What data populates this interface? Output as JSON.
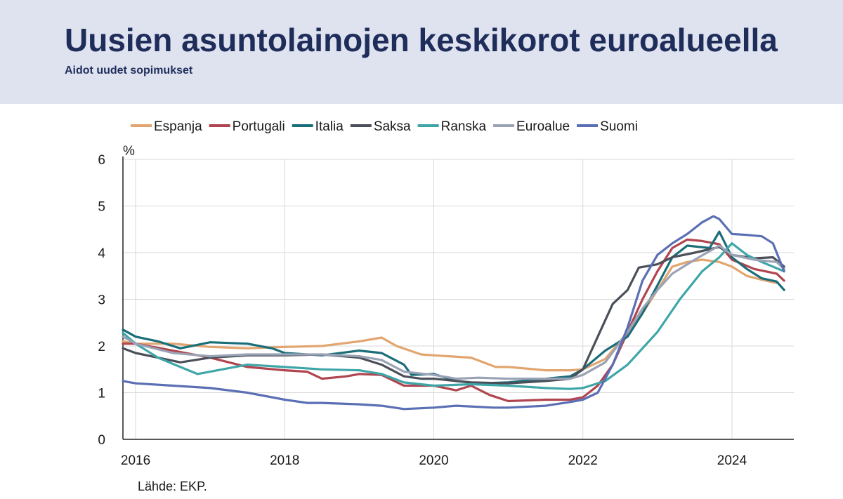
{
  "header": {
    "title": "Uusien asuntolainojen keskikorot euroalueella",
    "subtitle": "Aidot uudet sopimukset"
  },
  "source": "Lähde: EKP.",
  "chart_data": {
    "type": "line",
    "ylabel": "%",
    "ylim": [
      0,
      6
    ],
    "yticks": [
      "0",
      "1",
      "2",
      "3",
      "4",
      "5",
      "6"
    ],
    "xlim": [
      2015.83,
      2024.83
    ],
    "xticks": [
      {
        "value": 2016,
        "label": "2016"
      },
      {
        "value": 2018,
        "label": "2018"
      },
      {
        "value": 2020,
        "label": "2020"
      },
      {
        "value": 2022,
        "label": "2022"
      },
      {
        "value": 2024,
        "label": "2024"
      }
    ],
    "grid": true,
    "legend_position": "top",
    "series": [
      {
        "name": "Espanja",
        "color": "#e2a56f",
        "points": [
          [
            2015.83,
            2.1
          ],
          [
            2016.0,
            2.05
          ],
          [
            2016.5,
            2.05
          ],
          [
            2017.0,
            1.98
          ],
          [
            2017.5,
            1.95
          ],
          [
            2018.0,
            1.98
          ],
          [
            2018.5,
            2.0
          ],
          [
            2019.0,
            2.1
          ],
          [
            2019.3,
            2.18
          ],
          [
            2019.5,
            2.0
          ],
          [
            2019.83,
            1.82
          ],
          [
            2020.0,
            1.8
          ],
          [
            2020.5,
            1.75
          ],
          [
            2020.83,
            1.55
          ],
          [
            2021.0,
            1.55
          ],
          [
            2021.5,
            1.48
          ],
          [
            2021.83,
            1.48
          ],
          [
            2022.0,
            1.5
          ],
          [
            2022.3,
            1.72
          ],
          [
            2022.5,
            2.1
          ],
          [
            2022.8,
            2.7
          ],
          [
            2023.0,
            3.2
          ],
          [
            2023.2,
            3.7
          ],
          [
            2023.4,
            3.8
          ],
          [
            2023.6,
            3.85
          ],
          [
            2023.83,
            3.8
          ],
          [
            2024.0,
            3.7
          ],
          [
            2024.2,
            3.5
          ],
          [
            2024.4,
            3.42
          ],
          [
            2024.6,
            3.35
          ]
        ]
      },
      {
        "name": "Portugali",
        "color": "#b0454f",
        "points": [
          [
            2015.83,
            2.05
          ],
          [
            2016.0,
            2.05
          ],
          [
            2016.5,
            1.9
          ],
          [
            2017.0,
            1.75
          ],
          [
            2017.5,
            1.55
          ],
          [
            2018.0,
            1.48
          ],
          [
            2018.3,
            1.45
          ],
          [
            2018.5,
            1.3
          ],
          [
            2018.83,
            1.35
          ],
          [
            2019.0,
            1.4
          ],
          [
            2019.3,
            1.38
          ],
          [
            2019.6,
            1.15
          ],
          [
            2019.83,
            1.15
          ],
          [
            2020.0,
            1.15
          ],
          [
            2020.3,
            1.05
          ],
          [
            2020.5,
            1.15
          ],
          [
            2020.75,
            0.95
          ],
          [
            2021.0,
            0.82
          ],
          [
            2021.5,
            0.85
          ],
          [
            2021.83,
            0.85
          ],
          [
            2022.0,
            0.9
          ],
          [
            2022.2,
            1.15
          ],
          [
            2022.4,
            1.6
          ],
          [
            2022.6,
            2.3
          ],
          [
            2022.8,
            3.0
          ],
          [
            2023.0,
            3.6
          ],
          [
            2023.2,
            4.1
          ],
          [
            2023.4,
            4.28
          ],
          [
            2023.6,
            4.25
          ],
          [
            2023.83,
            4.18
          ],
          [
            2024.0,
            3.85
          ],
          [
            2024.3,
            3.65
          ],
          [
            2024.6,
            3.55
          ],
          [
            2024.7,
            3.4
          ]
        ]
      },
      {
        "name": "Italia",
        "color": "#1a6e7a",
        "points": [
          [
            2015.83,
            2.35
          ],
          [
            2016.0,
            2.2
          ],
          [
            2016.3,
            2.1
          ],
          [
            2016.6,
            1.95
          ],
          [
            2017.0,
            2.08
          ],
          [
            2017.5,
            2.05
          ],
          [
            2017.83,
            1.95
          ],
          [
            2018.0,
            1.85
          ],
          [
            2018.5,
            1.8
          ],
          [
            2019.0,
            1.9
          ],
          [
            2019.3,
            1.85
          ],
          [
            2019.6,
            1.6
          ],
          [
            2019.7,
            1.38
          ],
          [
            2020.0,
            1.4
          ],
          [
            2020.3,
            1.25
          ],
          [
            2020.6,
            1.2
          ],
          [
            2021.0,
            1.22
          ],
          [
            2021.5,
            1.3
          ],
          [
            2021.83,
            1.35
          ],
          [
            2022.0,
            1.5
          ],
          [
            2022.3,
            1.9
          ],
          [
            2022.6,
            2.2
          ],
          [
            2022.8,
            2.7
          ],
          [
            2023.0,
            3.3
          ],
          [
            2023.2,
            3.9
          ],
          [
            2023.4,
            4.15
          ],
          [
            2023.7,
            4.1
          ],
          [
            2023.83,
            4.45
          ],
          [
            2024.0,
            3.9
          ],
          [
            2024.2,
            3.65
          ],
          [
            2024.4,
            3.45
          ],
          [
            2024.6,
            3.38
          ],
          [
            2024.7,
            3.2
          ]
        ]
      },
      {
        "name": "Saksa",
        "color": "#4a4f59",
        "points": [
          [
            2015.83,
            1.95
          ],
          [
            2016.0,
            1.85
          ],
          [
            2016.3,
            1.75
          ],
          [
            2016.6,
            1.65
          ],
          [
            2017.0,
            1.75
          ],
          [
            2017.5,
            1.8
          ],
          [
            2018.0,
            1.8
          ],
          [
            2018.5,
            1.82
          ],
          [
            2019.0,
            1.75
          ],
          [
            2019.3,
            1.6
          ],
          [
            2019.6,
            1.35
          ],
          [
            2019.83,
            1.3
          ],
          [
            2020.0,
            1.3
          ],
          [
            2020.5,
            1.22
          ],
          [
            2021.0,
            1.2
          ],
          [
            2021.5,
            1.25
          ],
          [
            2021.83,
            1.3
          ],
          [
            2022.0,
            1.5
          ],
          [
            2022.2,
            2.2
          ],
          [
            2022.4,
            2.9
          ],
          [
            2022.6,
            3.2
          ],
          [
            2022.75,
            3.68
          ],
          [
            2023.0,
            3.75
          ],
          [
            2023.2,
            3.9
          ],
          [
            2023.5,
            4.0
          ],
          [
            2023.83,
            4.12
          ],
          [
            2024.0,
            3.95
          ],
          [
            2024.3,
            3.88
          ],
          [
            2024.55,
            3.9
          ],
          [
            2024.7,
            3.7
          ]
        ]
      },
      {
        "name": "Ranska",
        "color": "#3fa6a8",
        "points": [
          [
            2015.83,
            2.28
          ],
          [
            2016.0,
            2.05
          ],
          [
            2016.3,
            1.75
          ],
          [
            2016.6,
            1.55
          ],
          [
            2016.83,
            1.4
          ],
          [
            2017.0,
            1.45
          ],
          [
            2017.5,
            1.6
          ],
          [
            2018.0,
            1.55
          ],
          [
            2018.5,
            1.5
          ],
          [
            2019.0,
            1.48
          ],
          [
            2019.3,
            1.4
          ],
          [
            2019.6,
            1.22
          ],
          [
            2020.0,
            1.15
          ],
          [
            2020.5,
            1.18
          ],
          [
            2021.0,
            1.15
          ],
          [
            2021.5,
            1.1
          ],
          [
            2021.83,
            1.08
          ],
          [
            2022.0,
            1.1
          ],
          [
            2022.3,
            1.25
          ],
          [
            2022.6,
            1.6
          ],
          [
            2023.0,
            2.3
          ],
          [
            2023.3,
            3.0
          ],
          [
            2023.6,
            3.6
          ],
          [
            2023.83,
            3.9
          ],
          [
            2024.0,
            4.2
          ],
          [
            2024.2,
            3.95
          ],
          [
            2024.4,
            3.8
          ],
          [
            2024.7,
            3.6
          ]
        ]
      },
      {
        "name": "Euroalue",
        "color": "#9aa3b5",
        "points": [
          [
            2015.83,
            2.2
          ],
          [
            2016.0,
            2.05
          ],
          [
            2016.5,
            1.85
          ],
          [
            2017.0,
            1.78
          ],
          [
            2017.5,
            1.82
          ],
          [
            2018.0,
            1.82
          ],
          [
            2018.5,
            1.82
          ],
          [
            2019.0,
            1.78
          ],
          [
            2019.3,
            1.7
          ],
          [
            2019.6,
            1.45
          ],
          [
            2020.0,
            1.38
          ],
          [
            2020.3,
            1.3
          ],
          [
            2020.6,
            1.32
          ],
          [
            2021.0,
            1.3
          ],
          [
            2021.5,
            1.3
          ],
          [
            2021.83,
            1.3
          ],
          [
            2022.0,
            1.38
          ],
          [
            2022.3,
            1.65
          ],
          [
            2022.6,
            2.3
          ],
          [
            2022.8,
            2.8
          ],
          [
            2023.0,
            3.2
          ],
          [
            2023.2,
            3.55
          ],
          [
            2023.5,
            3.85
          ],
          [
            2023.83,
            4.15
          ],
          [
            2024.0,
            3.95
          ],
          [
            2024.3,
            3.85
          ],
          [
            2024.6,
            3.8
          ],
          [
            2024.7,
            3.65
          ]
        ]
      },
      {
        "name": "Suomi",
        "color": "#5a6fb4",
        "points": [
          [
            2015.83,
            1.25
          ],
          [
            2016.0,
            1.2
          ],
          [
            2016.5,
            1.15
          ],
          [
            2017.0,
            1.1
          ],
          [
            2017.5,
            1.0
          ],
          [
            2018.0,
            0.85
          ],
          [
            2018.3,
            0.78
          ],
          [
            2018.5,
            0.78
          ],
          [
            2019.0,
            0.75
          ],
          [
            2019.3,
            0.72
          ],
          [
            2019.6,
            0.65
          ],
          [
            2020.0,
            0.68
          ],
          [
            2020.3,
            0.72
          ],
          [
            2020.8,
            0.68
          ],
          [
            2021.0,
            0.68
          ],
          [
            2021.5,
            0.72
          ],
          [
            2021.83,
            0.8
          ],
          [
            2022.0,
            0.85
          ],
          [
            2022.2,
            1.0
          ],
          [
            2022.4,
            1.6
          ],
          [
            2022.6,
            2.4
          ],
          [
            2022.8,
            3.4
          ],
          [
            2023.0,
            3.95
          ],
          [
            2023.2,
            4.2
          ],
          [
            2023.4,
            4.4
          ],
          [
            2023.6,
            4.65
          ],
          [
            2023.75,
            4.78
          ],
          [
            2023.83,
            4.72
          ],
          [
            2024.0,
            4.4
          ],
          [
            2024.2,
            4.38
          ],
          [
            2024.4,
            4.35
          ],
          [
            2024.55,
            4.2
          ],
          [
            2024.7,
            3.6
          ]
        ]
      }
    ]
  }
}
